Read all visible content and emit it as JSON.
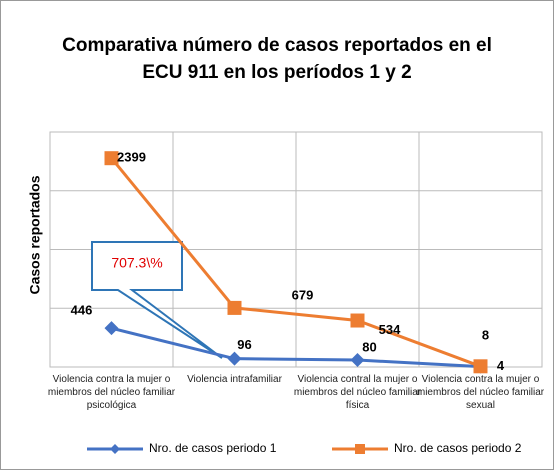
{
  "chart_data": {
    "type": "line",
    "title": "Comparativa número de casos reportados en el ECU 911 en los períodos 1 y 2",
    "y_label": "Casos reportados",
    "categories": [
      "Violencia contra la mujer o miembros del núcleo familiar psicológica",
      "Violencia intrafamiliar",
      "Violencia contral la mujer o miembros del núcleo familiar física",
      "Violencia contra la mujer o miembros del núcleo familiar sexual"
    ],
    "series": [
      {
        "name": "Nro. de casos periodo 1",
        "color": "#4472c4",
        "marker": "diamond",
        "values": [
          446,
          96,
          80,
          4
        ]
      },
      {
        "name": "Nro. de casos periodo 2",
        "color": "#ed7d31",
        "marker": "square",
        "values": [
          2399,
          679,
          534,
          8
        ]
      }
    ],
    "annotation": "707.3\\%",
    "ylim": [
      0,
      2700
    ],
    "yticks": [
      0,
      675,
      1350,
      2025,
      2700
    ],
    "grid": true,
    "legend": "bottom"
  }
}
